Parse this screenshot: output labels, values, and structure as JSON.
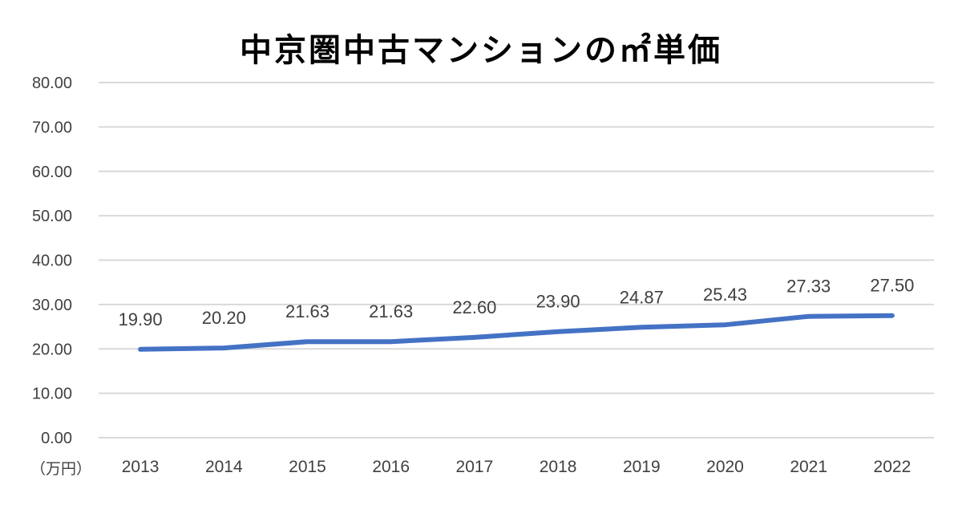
{
  "title": "中京圏中古マンションの㎡単価",
  "unit_label": "（万円）",
  "colors": {
    "line": "#4472C4",
    "grid": "#D9D9D9",
    "text": "#404040"
  },
  "chart_data": {
    "type": "line",
    "title": "中京圏中古マンションの㎡単価",
    "xlabel": "",
    "ylabel": "（万円）",
    "categories": [
      "2013",
      "2014",
      "2015",
      "2016",
      "2017",
      "2018",
      "2019",
      "2020",
      "2021",
      "2022"
    ],
    "series": [
      {
        "name": "㎡単価",
        "values": [
          19.9,
          20.2,
          21.63,
          21.63,
          22.6,
          23.9,
          24.87,
          25.43,
          27.33,
          27.5
        ]
      }
    ],
    "data_labels": [
      "19.90",
      "20.20",
      "21.63",
      "21.63",
      "22.60",
      "23.90",
      "24.87",
      "25.43",
      "27.33",
      "27.50"
    ],
    "ylim": [
      0,
      80
    ],
    "yticks": [
      "0.00",
      "10.00",
      "20.00",
      "30.00",
      "40.00",
      "50.00",
      "60.00",
      "70.00",
      "80.00"
    ],
    "grid": true,
    "legend": "none"
  }
}
